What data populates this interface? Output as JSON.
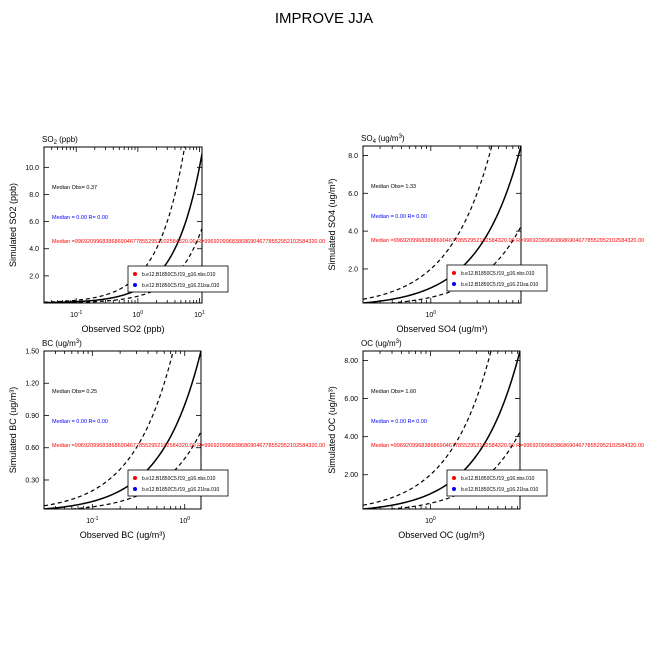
{
  "figure_title": "IMPROVE JJA",
  "chart_data": [
    {
      "type": "scatter",
      "panel_label_main": "SO",
      "panel_label_sub": "2",
      "panel_label_tail": " (ppb)",
      "xlabel": "Observed SO2 (ppb)",
      "ylabel": "Simulated SO2 (ppb)",
      "x_scale": "log",
      "xlim": [
        0.03,
        11
      ],
      "ylim": [
        0,
        11.5
      ],
      "x_ticks": [
        {
          "value": 0.1,
          "base": "10",
          "exp": "-1"
        },
        {
          "value": 1,
          "base": "10",
          "exp": "0"
        },
        {
          "value": 10,
          "base": "10",
          "exp": "1"
        }
      ],
      "y_ticks": [
        {
          "value": 2,
          "label": "2.0"
        },
        {
          "value": 4,
          "label": "4.0"
        },
        {
          "value": 6,
          "label": "6.0"
        },
        {
          "value": 8,
          "label": "8.0"
        },
        {
          "value": 10,
          "label": "10.0"
        }
      ],
      "median_obs": "Median Obs= 0.37",
      "median_blue": "Median = 0.00 R= 0.00",
      "median_red": "Median =99692099683868690467785529521025843​20.00 R=9969209968386869046778552952102584320.00",
      "legend": [
        {
          "name": "b.e12.B1850C5.f19_g16.nbs.010",
          "color": "#ff0000"
        },
        {
          "name": "b.e12.B1850C5.f19_g16.21lsa.010",
          "color": "#0000ff"
        }
      ],
      "reference_lines": [
        "1:1",
        "2:1",
        "1:2"
      ]
    },
    {
      "type": "scatter",
      "panel_label_main": "SO",
      "panel_label_sub": "4",
      "panel_label_tail": " (ug/m",
      "panel_label_sup": "3",
      "panel_label_end": ")",
      "xlabel": "Observed SO4 (ug/m³)",
      "ylabel": "Simulated SO4 (ug/m³)",
      "x_scale": "log",
      "xlim": [
        0.2,
        8.5
      ],
      "ylim": [
        0.2,
        8.5
      ],
      "x_ticks": [
        {
          "value": 1,
          "base": "10",
          "exp": "0"
        }
      ],
      "y_ticks": [
        {
          "value": 2,
          "label": "2.0"
        },
        {
          "value": 4,
          "label": "4.0"
        },
        {
          "value": 6,
          "label": "6.0"
        },
        {
          "value": 8,
          "label": "8.0"
        }
      ],
      "median_obs": "Median Obs= 1.33",
      "median_blue": "Median = 0.00 R= 0.00",
      "median_red": "Median =9969209968386869046778552952102584320.00 R=9969209968386869046778552952102584320.00",
      "legend": [
        {
          "name": "b.e12.B1850C5.f19_g16.nbs.010",
          "color": "#ff0000"
        },
        {
          "name": "b.e12.B1850C5.f19_g16.21lsa.010",
          "color": "#0000ff"
        }
      ],
      "reference_lines": [
        "1:1",
        "2:1",
        "1:2"
      ]
    },
    {
      "type": "scatter",
      "panel_label_main": "BC (ug/m",
      "panel_label_sup": "3",
      "panel_label_end": ")",
      "xlabel": "Observed BC (ug/m³)",
      "ylabel": "Simulated BC (ug/m³)",
      "x_scale": "log",
      "xlim": [
        0.03,
        1.5
      ],
      "ylim": [
        0.03,
        1.5
      ],
      "x_ticks": [
        {
          "value": 0.1,
          "base": "10",
          "exp": "-1"
        },
        {
          "value": 1,
          "base": "10",
          "exp": "0"
        }
      ],
      "y_ticks": [
        {
          "value": 0.3,
          "label": "0.30"
        },
        {
          "value": 0.6,
          "label": "0.60"
        },
        {
          "value": 0.9,
          "label": "0.90"
        },
        {
          "value": 1.2,
          "label": "1.20"
        },
        {
          "value": 1.5,
          "label": "1.50"
        }
      ],
      "median_obs": "Median Obs= 0.25",
      "median_blue": "Median = 0.00 R= 0.00",
      "median_red": "Median =9969209968386869046778552952102584320.00 R=9969209968386869046778552952102584320.00",
      "legend": [
        {
          "name": "b.e12.B1850C5.f19_g16.nbs.010",
          "color": "#ff0000"
        },
        {
          "name": "b.e12.B1850C5.f19_g16.21lsa.010",
          "color": "#0000ff"
        }
      ],
      "reference_lines": [
        "1:1",
        "2:1",
        "1:2"
      ]
    },
    {
      "type": "scatter",
      "panel_label_main": "OC (ug/m",
      "panel_label_sup": "3",
      "panel_label_end": ")",
      "xlabel": "Observed OC (ug/m³)",
      "ylabel": "Simulated OC (ug/m³)",
      "x_scale": "log",
      "xlim": [
        0.2,
        8.5
      ],
      "ylim": [
        0.2,
        8.5
      ],
      "x_ticks": [
        {
          "value": 1,
          "base": "10",
          "exp": "0"
        }
      ],
      "y_ticks": [
        {
          "value": 2,
          "label": "2.00"
        },
        {
          "value": 4,
          "label": "4.00"
        },
        {
          "value": 6,
          "label": "6.00"
        },
        {
          "value": 8,
          "label": "8.00"
        }
      ],
      "median_obs": "Median Obs= 1.60",
      "median_blue": "Median = 0.00 R= 0.00",
      "median_red": "Median =9969209968386869046778552952102584320.00 R=9969209968386869046778552952102584320.00",
      "legend": [
        {
          "name": "b.e12.B1850C5.f19_g16.nbs.010",
          "color": "#ff0000"
        },
        {
          "name": "b.e12.B1850C5.f19_g16.21lsa.010",
          "color": "#0000ff"
        }
      ],
      "reference_lines": [
        "1:1",
        "2:1",
        "1:2"
      ]
    }
  ]
}
